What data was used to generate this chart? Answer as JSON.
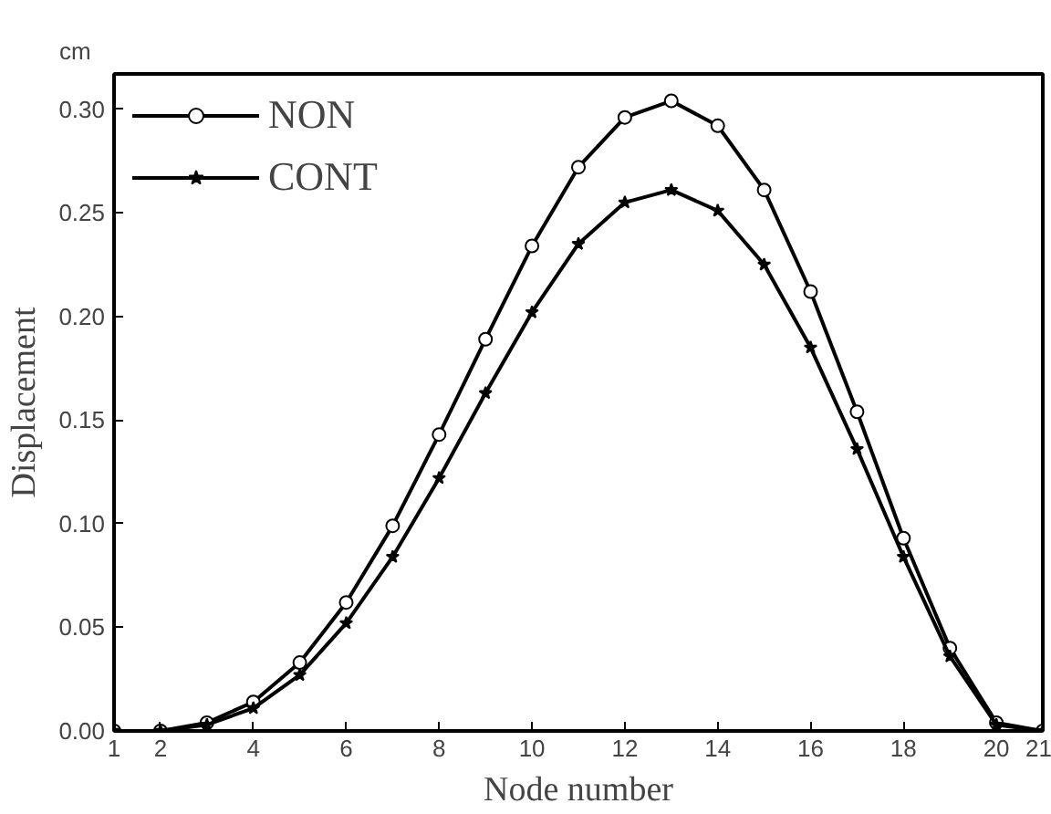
{
  "chart_data": {
    "type": "line",
    "xlabel": "Node number",
    "ylabel": "Displacement",
    "annotations": [
      "cm"
    ],
    "x": [
      1,
      2,
      3,
      4,
      5,
      6,
      7,
      8,
      9,
      10,
      11,
      12,
      13,
      14,
      15,
      16,
      17,
      18,
      19,
      20,
      21
    ],
    "series": [
      {
        "name": "NON",
        "color": "#000000",
        "marker": "circle",
        "values": [
          0,
          0,
          0.004,
          0.014,
          0.033,
          0.062,
          0.099,
          0.143,
          0.189,
          0.234,
          0.272,
          0.296,
          0.304,
          0.292,
          0.261,
          0.212,
          0.154,
          0.093,
          0.04,
          0.004,
          0
        ]
      },
      {
        "name": "CONT",
        "color": "#000000",
        "marker": "star",
        "values": [
          0,
          0,
          0.003,
          0.011,
          0.027,
          0.052,
          0.084,
          0.122,
          0.163,
          0.202,
          0.235,
          0.255,
          0.261,
          0.251,
          0.225,
          0.185,
          0.136,
          0.084,
          0.036,
          0.003,
          0
        ]
      }
    ],
    "xlim": [
      1,
      21
    ],
    "xticks": [
      1,
      2,
      4,
      6,
      8,
      10,
      12,
      14,
      16,
      18,
      20,
      21
    ],
    "ylim": [
      0,
      0.317
    ],
    "yticks": [
      {
        "value": 0,
        "label": "0.00"
      },
      {
        "value": 0.05,
        "label": "0.05"
      },
      {
        "value": 0.1,
        "label": "0.10"
      },
      {
        "value": 0.15,
        "label": "0.15"
      },
      {
        "value": 0.2,
        "label": "0.20"
      },
      {
        "value": 0.25,
        "label": "0.25"
      },
      {
        "value": 0.3,
        "label": "0.30"
      }
    ],
    "grid": false,
    "legend": "top left",
    "line_style": "solid"
  }
}
